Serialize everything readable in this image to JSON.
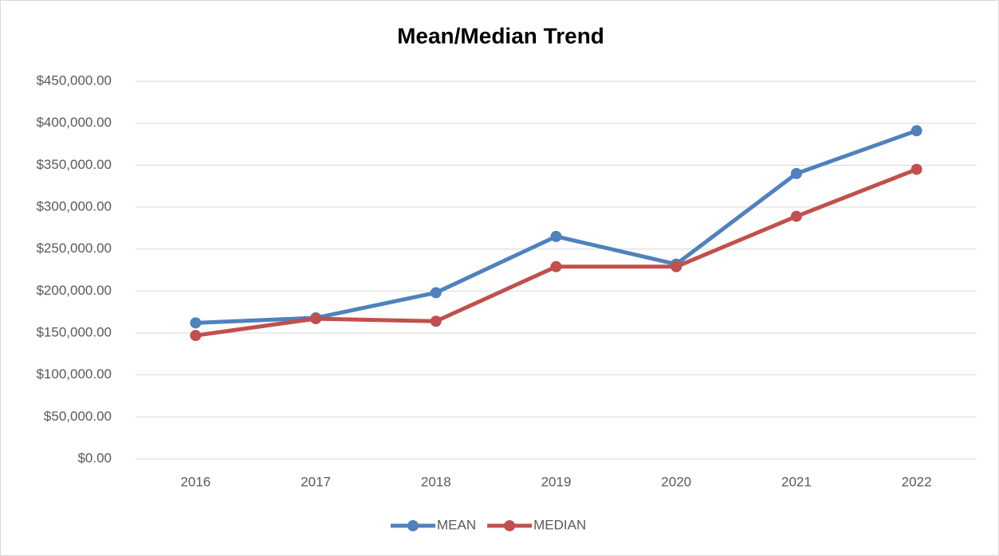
{
  "chart_data": {
    "type": "line",
    "title": "Mean/Median Trend",
    "categories": [
      "2016",
      "2017",
      "2018",
      "2019",
      "2020",
      "2021",
      "2022"
    ],
    "series": [
      {
        "name": "MEAN",
        "color": "#4f81bd",
        "values": [
          162000,
          168000,
          198000,
          265000,
          232000,
          340000,
          391000
        ]
      },
      {
        "name": "MEDIAN",
        "color": "#c0504d",
        "values": [
          147000,
          167000,
          164000,
          229000,
          229000,
          289000,
          345000
        ]
      }
    ],
    "ylim": [
      0,
      450000
    ],
    "yticks": [
      {
        "value": 0,
        "label": "$0.00"
      },
      {
        "value": 50000,
        "label": "$50,000.00"
      },
      {
        "value": 100000,
        "label": "$100,000.00"
      },
      {
        "value": 150000,
        "label": "$150,000.00"
      },
      {
        "value": 200000,
        "label": "$200,000.00"
      },
      {
        "value": 250000,
        "label": "$250,000.00"
      },
      {
        "value": 300000,
        "label": "$300,000.00"
      },
      {
        "value": 350000,
        "label": "$350,000.00"
      },
      {
        "value": 400000,
        "label": "$400,000.00"
      },
      {
        "value": 450000,
        "label": "$450,000.00"
      }
    ],
    "grid": true,
    "legend": "bottom"
  }
}
